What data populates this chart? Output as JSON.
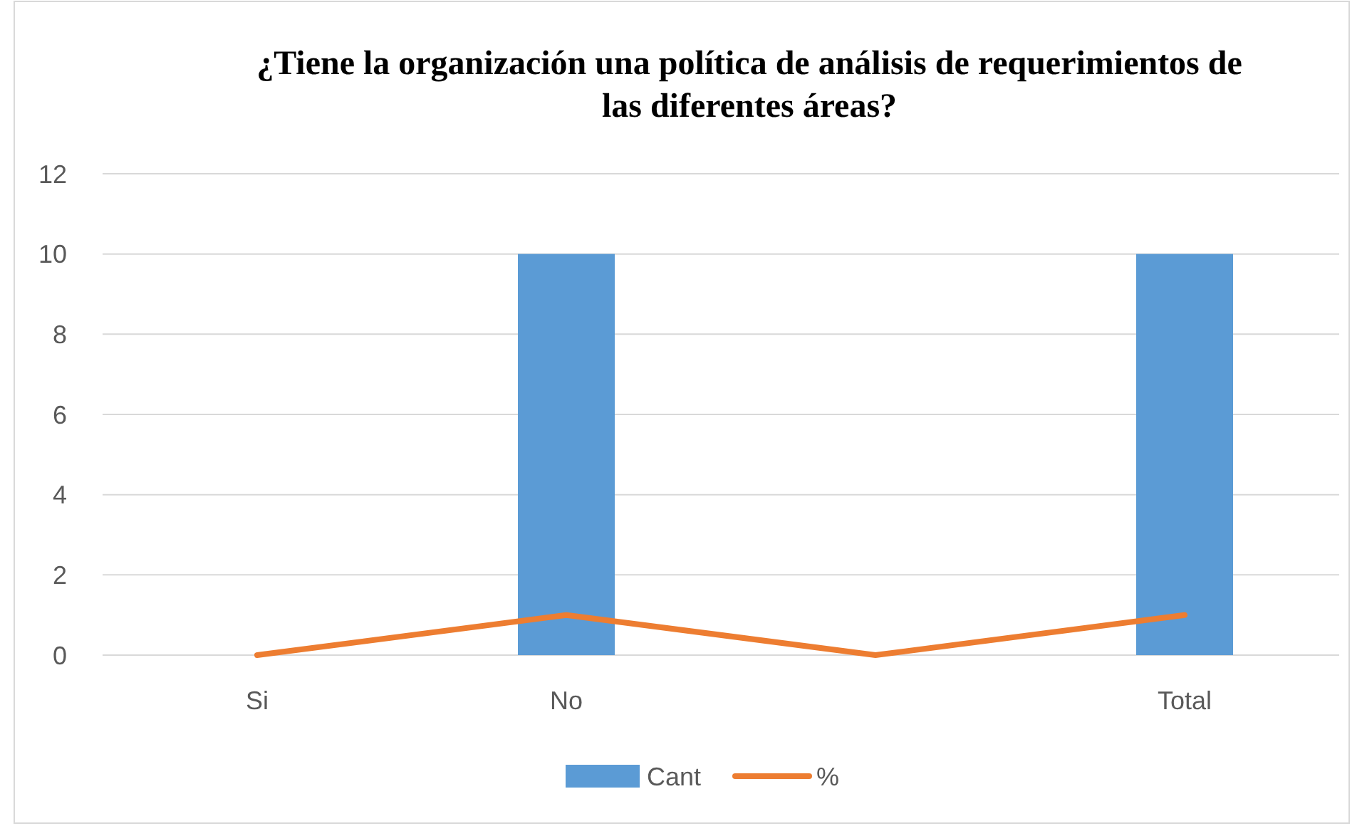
{
  "chart_data": {
    "type": "bar",
    "title": "¿Tiene la organización una política de análisis de requerimientos de las diferentes áreas?",
    "categories": [
      "Si",
      "No",
      null,
      "Total"
    ],
    "series": [
      {
        "name": "Cant",
        "color": "#5b9bd5",
        "values": [
          0,
          10,
          0,
          10
        ]
      },
      {
        "name": "%",
        "type": "line",
        "color": "#ed7d31",
        "values": [
          0,
          1,
          0,
          1
        ]
      }
    ],
    "ylim": [
      0,
      12
    ],
    "yticks": [
      0,
      2,
      4,
      6,
      8,
      10,
      12
    ],
    "grid": "y",
    "legend": "bottom",
    "marker": "none"
  }
}
